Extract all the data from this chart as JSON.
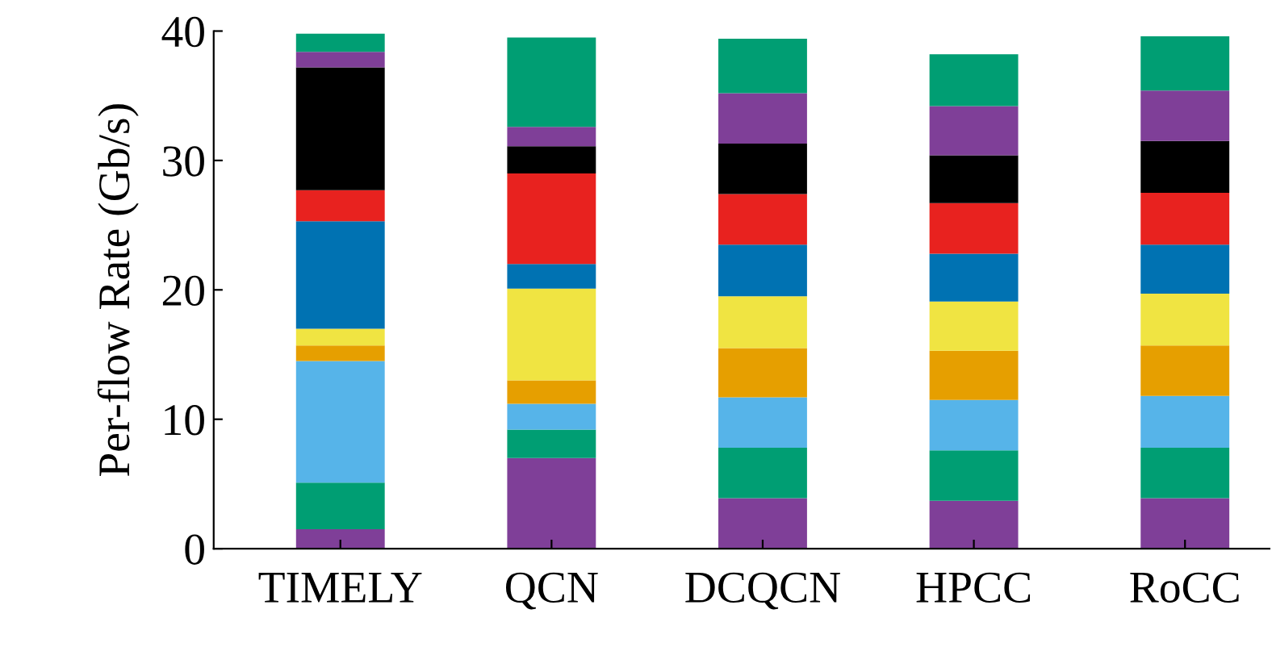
{
  "chart_data": {
    "type": "bar",
    "stacked": true,
    "ylabel": "Per-flow Rate (Gb/s)",
    "categories": [
      "TIMELY",
      "QCN",
      "DCQCN",
      "HPCC",
      "RoCC"
    ],
    "series": [
      {
        "color": "#7f3f98",
        "values": [
          1.5,
          7.0,
          3.9,
          3.7,
          3.9
        ]
      },
      {
        "color": "#009e73",
        "values": [
          3.6,
          2.2,
          3.9,
          3.9,
          3.9
        ]
      },
      {
        "color": "#56b4e9",
        "values": [
          9.4,
          2.0,
          3.9,
          3.9,
          4.0
        ]
      },
      {
        "color": "#e69f00",
        "values": [
          1.2,
          1.8,
          3.8,
          3.8,
          3.9
        ]
      },
      {
        "color": "#f0e442",
        "values": [
          1.3,
          7.1,
          4.0,
          3.8,
          4.0
        ]
      },
      {
        "color": "#0072b2",
        "values": [
          8.3,
          1.9,
          4.0,
          3.7,
          3.8
        ]
      },
      {
        "color": "#e8221f",
        "values": [
          2.4,
          7.0,
          3.9,
          3.9,
          4.0
        ]
      },
      {
        "color": "#000000",
        "values": [
          9.5,
          2.1,
          3.9,
          3.7,
          4.0
        ]
      },
      {
        "color": "#7f3f98",
        "values": [
          1.2,
          1.5,
          3.9,
          3.8,
          3.9
        ]
      },
      {
        "color": "#009e73",
        "values": [
          1.4,
          6.9,
          4.2,
          4.0,
          4.2
        ]
      }
    ],
    "ylim": [
      0,
      40
    ],
    "yticks": [
      0,
      10,
      20,
      30,
      40
    ],
    "grid": false,
    "legend": false
  }
}
